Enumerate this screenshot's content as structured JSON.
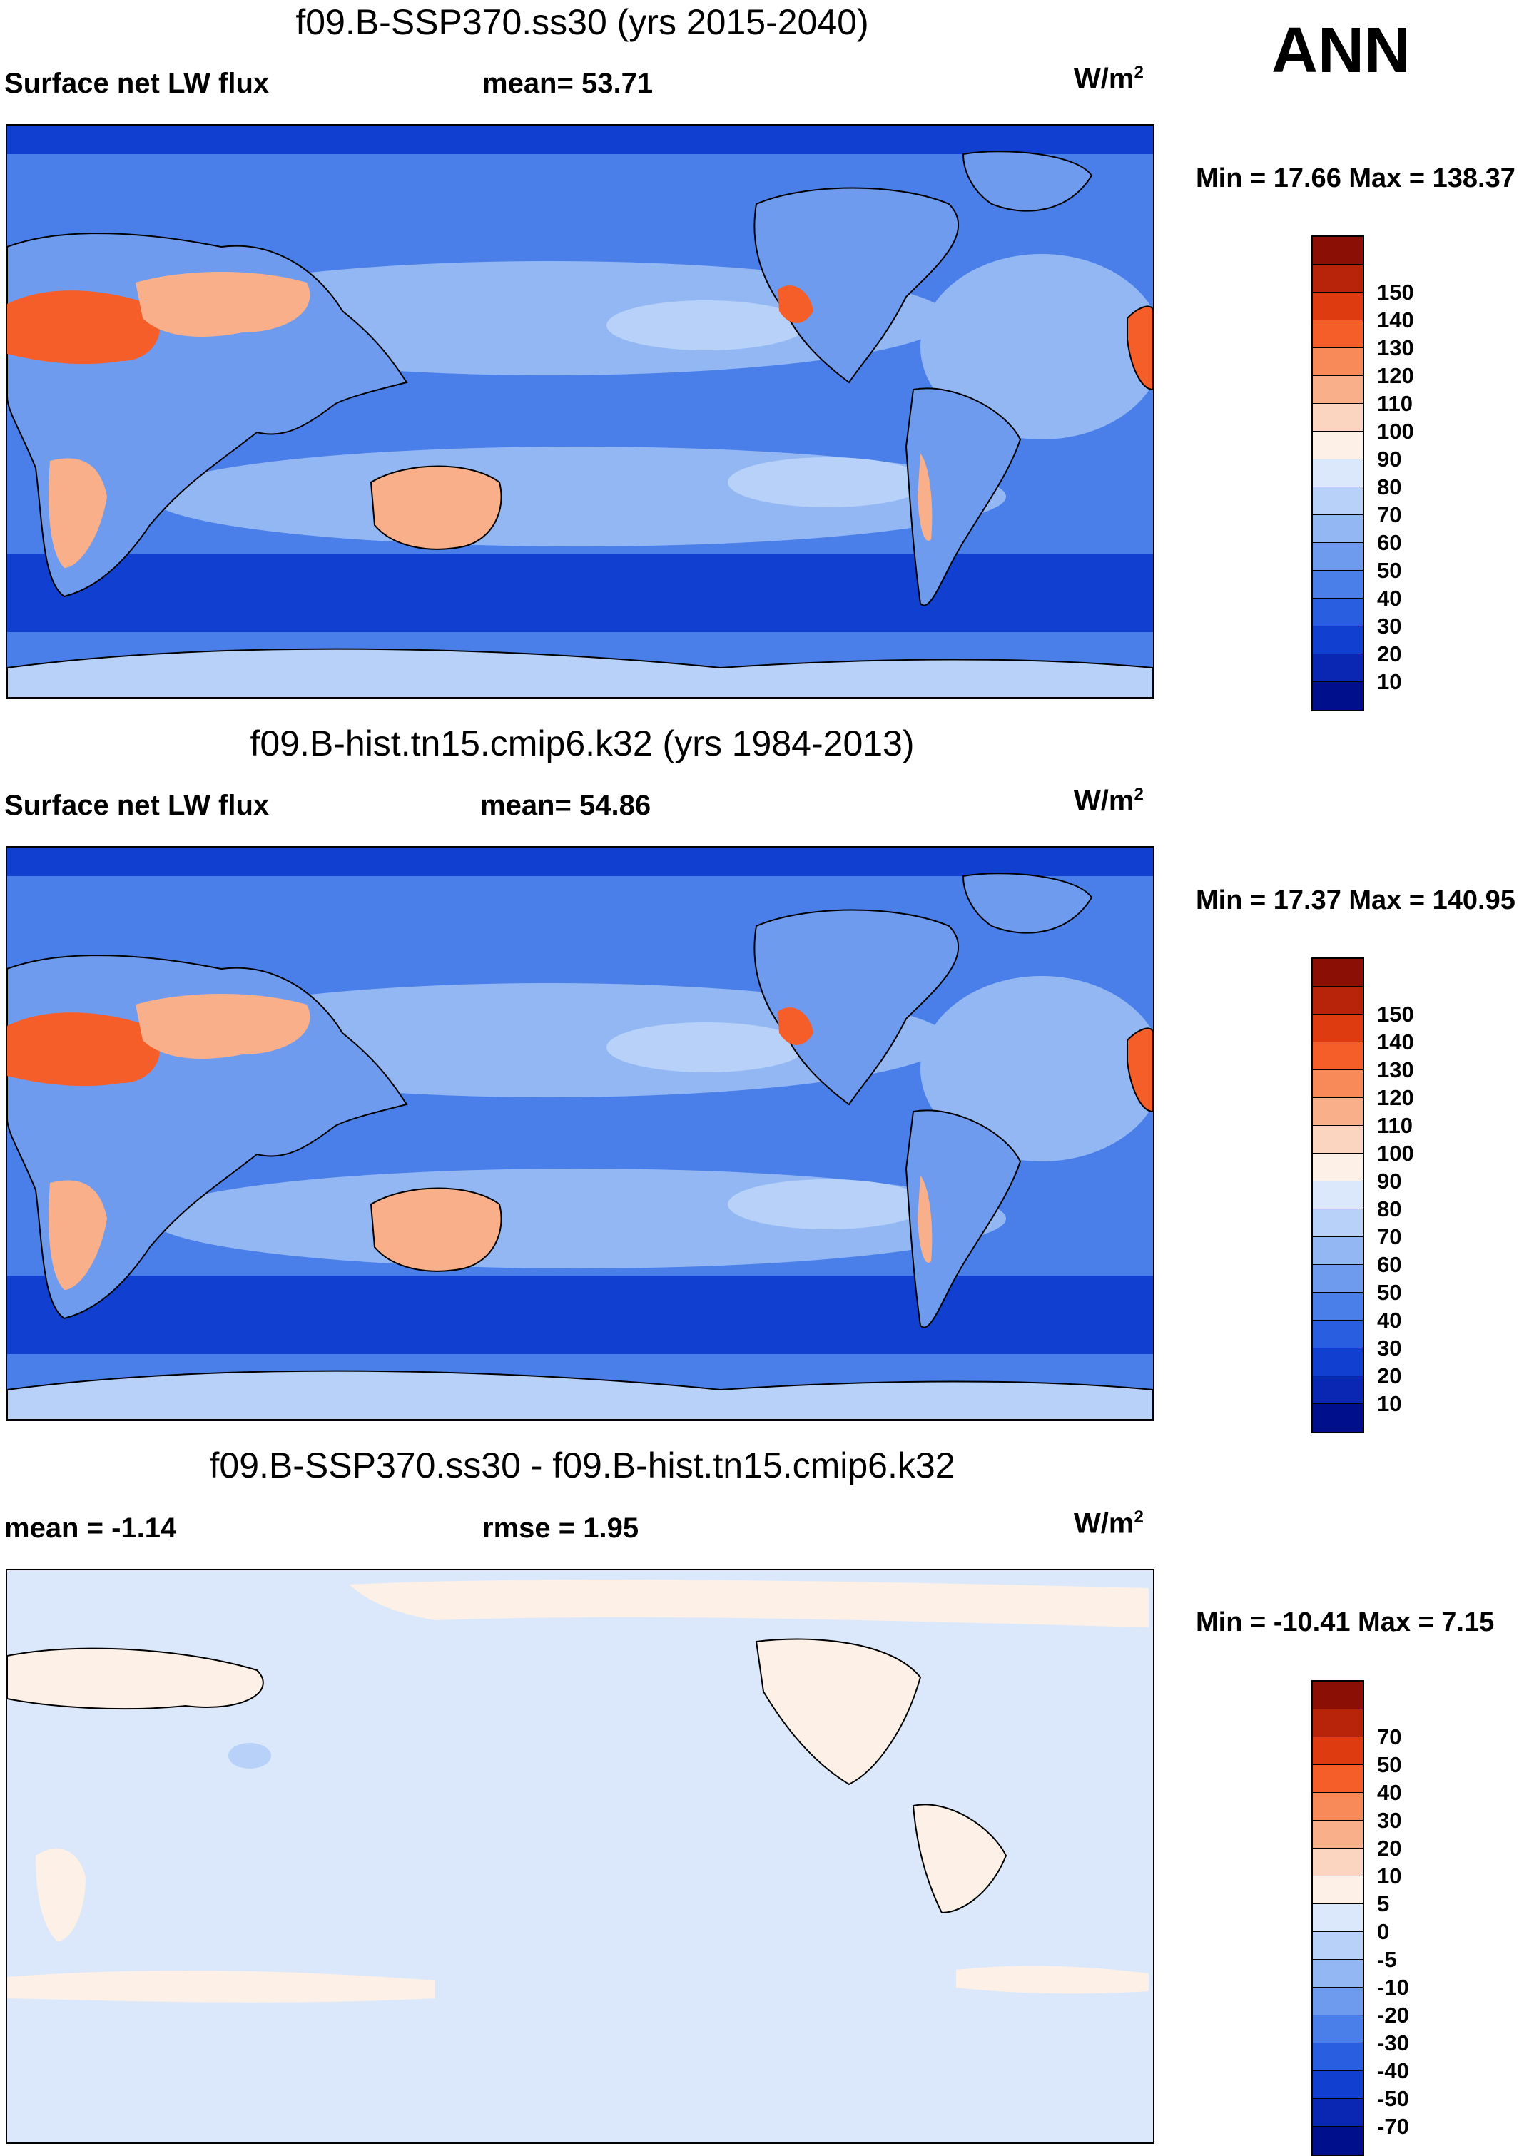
{
  "season": "ANN",
  "units_base": "W/m",
  "units_sup": "2",
  "panels": [
    {
      "title": "f09.B-SSP370.ss30 (yrs 2015-2040)",
      "left_label": "Surface net LW flux",
      "stat1": "mean=  53.71",
      "minmax": "Min =  17.66 Max = 138.37",
      "colorbar": {
        "colors": [
          "#8b0f05",
          "#b8240a",
          "#de3c10",
          "#f55e28",
          "#f78a58",
          "#f9b08a",
          "#fbd5c0",
          "#fdf0e6",
          "#dbe8fb",
          "#b7d1f8",
          "#93b7f3",
          "#6f9bee",
          "#4a7fe9",
          "#2a5ee0",
          "#1140d0",
          "#0a27b4",
          "#00108c"
        ],
        "labels": [
          "150",
          "140",
          "130",
          "120",
          "110",
          "100",
          "90",
          "80",
          "70",
          "60",
          "50",
          "40",
          "30",
          "20",
          "10"
        ]
      }
    },
    {
      "title": "f09.B-hist.tn15.cmip6.k32 (yrs 1984-2013)",
      "left_label": "Surface net LW flux",
      "stat1": "mean=  54.86",
      "minmax": "Min =  17.37 Max = 140.95",
      "colorbar": {
        "colors": [
          "#8b0f05",
          "#b8240a",
          "#de3c10",
          "#f55e28",
          "#f78a58",
          "#f9b08a",
          "#fbd5c0",
          "#fdf0e6",
          "#dbe8fb",
          "#b7d1f8",
          "#93b7f3",
          "#6f9bee",
          "#4a7fe9",
          "#2a5ee0",
          "#1140d0",
          "#0a27b4",
          "#00108c"
        ],
        "labels": [
          "150",
          "140",
          "130",
          "120",
          "110",
          "100",
          "90",
          "80",
          "70",
          "60",
          "50",
          "40",
          "30",
          "20",
          "10"
        ]
      }
    },
    {
      "title": "f09.B-SSP370.ss30 - f09.B-hist.tn15.cmip6.k32",
      "left_label": "mean =  -1.14",
      "stat1": "rmse =   1.95",
      "minmax": "Min = -10.41 Max =   7.15",
      "colorbar": {
        "colors": [
          "#8b0f05",
          "#b8240a",
          "#de3c10",
          "#f55e28",
          "#f78a58",
          "#f9b08a",
          "#fbd5c0",
          "#fdf0e6",
          "#dbe8fb",
          "#b7d1f8",
          "#93b7f3",
          "#6f9bee",
          "#4a7fe9",
          "#2a5ee0",
          "#1140d0",
          "#0a27b4",
          "#00108c"
        ],
        "labels": [
          "70",
          "50",
          "40",
          "30",
          "20",
          "10",
          "5",
          "0",
          "-5",
          "-10",
          "-20",
          "-30",
          "-40",
          "-50",
          "-70"
        ]
      }
    }
  ],
  "fill_colors": {
    "ocean_base": "#4a7fe9",
    "ocean_light": "#93b7f3",
    "ocean_lighter": "#b7d1f8",
    "ocean_dark": "#2a5ee0",
    "polar": "#1140d0",
    "desert_hot": "#f55e28",
    "desert_warm": "#f9b08a",
    "land_mid": "#6f9bee",
    "diff_base": "#dbe8fb",
    "diff_pos": "#fdf0e6",
    "diff_neg": "#b7d1f8"
  }
}
